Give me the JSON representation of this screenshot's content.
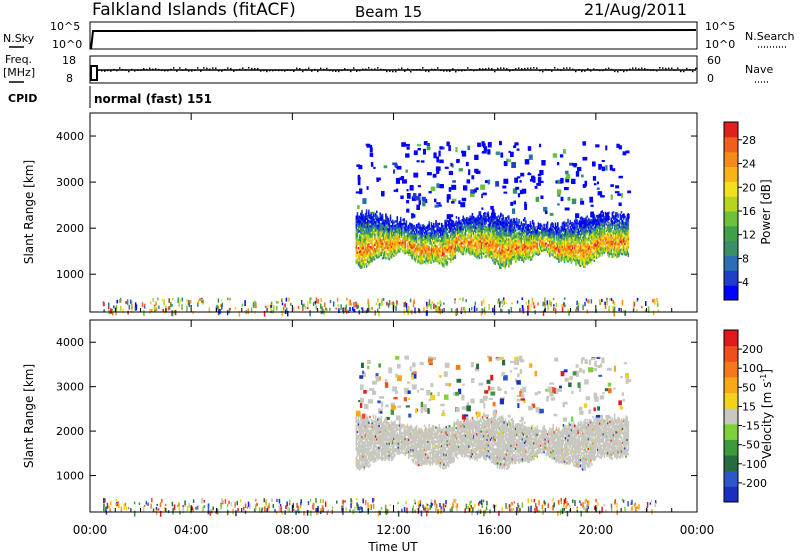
{
  "header": {
    "station": "Falkland Islands (fitACF)",
    "beam": "Beam 15",
    "date": "21/Aug/2011"
  },
  "nsky_panel": {
    "left_label": "N.Sky",
    "right_label": "N.Search",
    "left_ticks": [
      "10^5",
      "10^0"
    ],
    "right_ticks": [
      "10^5",
      "10^0"
    ]
  },
  "freq_panel": {
    "left_label_1": "Freq.",
    "left_label_2": "[MHz]",
    "right_label": "Nave",
    "left_ticks": [
      "18",
      "8"
    ],
    "right_ticks": [
      "60",
      "0"
    ]
  },
  "cpid": {
    "label": "CPID",
    "mode": "normal (fast) 151"
  },
  "chart_data": [
    {
      "type": "heatmap",
      "name": "power",
      "ylabel": "Slant Range [km]",
      "xlabel": "",
      "ylim": [
        180,
        4500
      ],
      "xlim": [
        0,
        24
      ],
      "y_ticks": [
        "1000",
        "2000",
        "3000",
        "4000"
      ],
      "colorbar": {
        "label": "Power [dB]",
        "ticks": [
          "28",
          "24",
          "20",
          "16",
          "12",
          "8",
          "4"
        ],
        "colors": [
          "#0000ff",
          "#1e40c8",
          "#2b6fb0",
          "#3a8f6a",
          "#3fa04a",
          "#6cc23c",
          "#b6d51e",
          "#f3e01a",
          "#f7b417",
          "#f58a1c",
          "#f15f1f",
          "#e0201c"
        ]
      },
      "echo_band": {
        "t_start": 10.5,
        "t_end": 21.3,
        "range_low_km": 1150,
        "range_high_km": 2300
      },
      "scatter_region": {
        "t_start": 10.5,
        "t_end": 21.3,
        "range_low_km": 2300,
        "range_high_km": 3900
      },
      "near_range_clutter": {
        "t_start": 0.5,
        "t_end": 22.5,
        "range_low_km": 200,
        "range_high_km": 500
      }
    },
    {
      "type": "heatmap",
      "name": "velocity",
      "ylabel": "Slant Range [km]",
      "xlabel": "Time UT",
      "ylim": [
        180,
        4500
      ],
      "xlim": [
        0,
        24
      ],
      "x_ticks": [
        "00:00",
        "04:00",
        "08:00",
        "12:00",
        "16:00",
        "20:00",
        "00:00"
      ],
      "y_ticks": [
        "1000",
        "2000",
        "3000",
        "4000"
      ],
      "colorbar": {
        "label": "Velocity [m s",
        "label_sup": "-1",
        "label_end": "]",
        "ticks": [
          "200",
          "100",
          "50",
          "15",
          "-15",
          "-50",
          "-100",
          "-200"
        ],
        "colors": [
          "#1a2fbf",
          "#2b57c8",
          "#276c3e",
          "#3c9a3c",
          "#7ed13a",
          "#c8c8c0",
          "#f3d21a",
          "#f7a817",
          "#f27a1c",
          "#ef4f1e",
          "#e01a1a"
        ]
      },
      "echo_band": {
        "t_start": 10.5,
        "t_end": 21.3,
        "range_low_km": 1150,
        "range_high_km": 2300
      },
      "scatter_region": {
        "t_start": 10.5,
        "t_end": 21.3,
        "range_low_km": 2300,
        "range_high_km": 3700
      },
      "near_range_clutter": {
        "t_start": 0.5,
        "t_end": 22.5,
        "range_low_km": 200,
        "range_high_km": 500
      }
    }
  ]
}
